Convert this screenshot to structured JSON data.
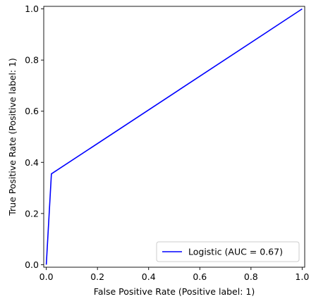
{
  "chart_data": {
    "type": "line",
    "title": "",
    "xlabel": "False Positive Rate (Positive label: 1)",
    "ylabel": "True Positive Rate (Positive label: 1)",
    "xlim": [
      -0.01,
      1.01
    ],
    "ylim": [
      -0.01,
      1.01
    ],
    "xticks": [
      0.0,
      0.2,
      0.4,
      0.6,
      0.8,
      1.0
    ],
    "yticks": [
      0.0,
      0.2,
      0.4,
      0.6,
      0.8,
      1.0
    ],
    "xtick_labels": [
      "0.0",
      "0.2",
      "0.4",
      "0.6",
      "0.8",
      "1.0"
    ],
    "ytick_labels": [
      "0.0",
      "0.2",
      "0.4",
      "0.6",
      "0.8",
      "1.0"
    ],
    "grid": false,
    "legend_position": "lower-right",
    "series": [
      {
        "name": "Logistic (AUC = 0.67)",
        "color": "#0000ff",
        "x": [
          0.0,
          0.02,
          1.0
        ],
        "y": [
          0.0,
          0.355,
          1.0
        ]
      }
    ]
  }
}
